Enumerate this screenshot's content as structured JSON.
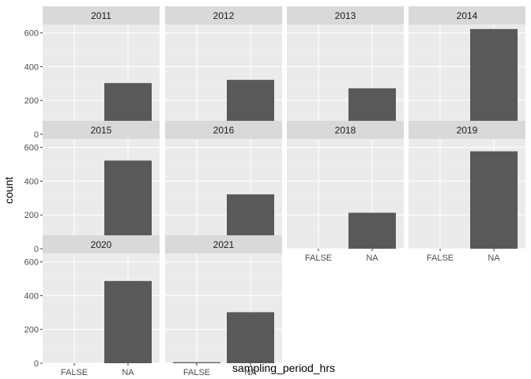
{
  "chart_data": {
    "type": "bar",
    "facet_by": "year",
    "categories": [
      "FALSE",
      "NA"
    ],
    "xlabel": "sampling_period_hrs",
    "ylabel": "count",
    "ylim": [
      0,
      650
    ],
    "yticks": [
      0,
      200,
      400,
      600
    ],
    "grid": true,
    "colors": {
      "panel_bg": "#EBEBEB",
      "strip_bg": "#D9D9D9",
      "bar": "#595959",
      "grid_major": "#FFFFFF",
      "grid_minor": "#F2F2F2"
    },
    "panels": [
      {
        "label": "2011",
        "values": [
          0,
          303
        ]
      },
      {
        "label": "2012",
        "values": [
          0,
          322
        ]
      },
      {
        "label": "2013",
        "values": [
          0,
          272
        ]
      },
      {
        "label": "2014",
        "values": [
          0,
          623
        ]
      },
      {
        "label": "2015",
        "values": [
          0,
          522
        ]
      },
      {
        "label": "2016",
        "values": [
          0,
          322
        ]
      },
      {
        "label": "2018",
        "values": [
          0,
          213
        ]
      },
      {
        "label": "2019",
        "values": [
          0,
          577
        ]
      },
      {
        "label": "2020",
        "values": [
          0,
          487
        ]
      },
      {
        "label": "2021",
        "values": [
          6,
          302
        ]
      }
    ]
  }
}
